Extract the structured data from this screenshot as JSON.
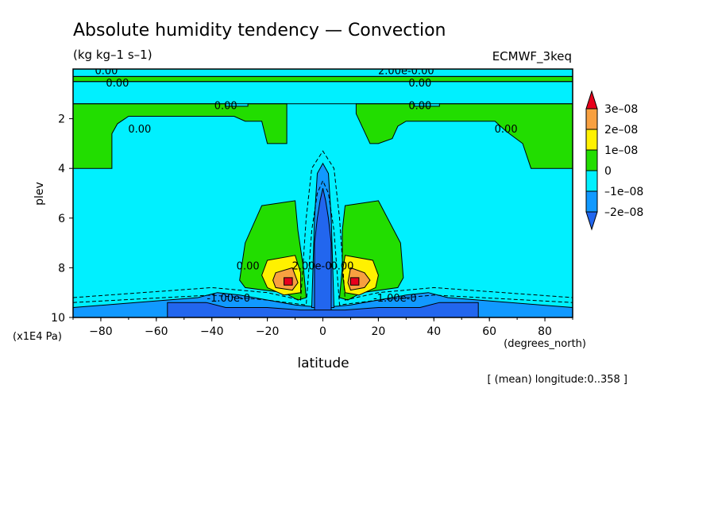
{
  "chart_data": {
    "type": "heatmap",
    "title": "Absolute humidity tendency — Convection",
    "units": "(kg kg–1 s–1)",
    "dataset": "ECMWF_3keq",
    "xlabel": "latitude",
    "xunits": "(degrees_north)",
    "ylabel": "plev",
    "yunits": "(x1E4 Pa)",
    "footnote": "[ (mean) longitude:0..358 ]",
    "xlim": [
      -90,
      90
    ],
    "ylim": [
      10,
      0
    ],
    "xticks": [
      "−80",
      "−60",
      "−40",
      "−20",
      "0",
      "20",
      "40",
      "60",
      "80"
    ],
    "xtick_values": [
      -80,
      -60,
      -40,
      -20,
      0,
      20,
      40,
      60,
      80
    ],
    "yticks": [
      "2",
      "4",
      "6",
      "8",
      "10"
    ],
    "ytick_values": [
      2,
      4,
      6,
      8,
      10
    ],
    "colorbar": {
      "labels": [
        "3e–08",
        "2e–08",
        "1e–08",
        "0",
        "–1e–08",
        "–2e–08"
      ],
      "values": [
        3e-08,
        2e-08,
        1e-08,
        0,
        -1e-08,
        -2e-08
      ],
      "colors": [
        "#e8001c",
        "#f8a040",
        "#fff100",
        "#22dd00",
        "#00f0ff",
        "#1199ff",
        "#2266ee"
      ]
    },
    "background_color": "#00f0ff",
    "regions": [
      {
        "name": "upper-green-band",
        "level": "0 to 1e-08",
        "color": "#22dd00",
        "points": [
          [
            -90,
            0.3
          ],
          [
            90,
            0.3
          ],
          [
            90,
            0.5
          ],
          [
            -90,
            0.5
          ]
        ]
      },
      {
        "name": "green-left-upper",
        "level": "0 to 1e-08",
        "color": "#22dd00",
        "points": [
          [
            -90,
            1.4
          ],
          [
            -35,
            1.4
          ],
          [
            -35,
            1.5
          ],
          [
            -27,
            1.5
          ],
          [
            -27,
            1.4
          ],
          [
            -13,
            1.4
          ],
          [
            -13,
            3.0
          ],
          [
            -20,
            3.0
          ],
          [
            -22,
            2.1
          ],
          [
            -28,
            2.1
          ],
          [
            -32,
            1.9
          ],
          [
            -70,
            1.9
          ],
          [
            -74,
            2.2
          ],
          [
            -76,
            2.6
          ],
          [
            -76,
            4.0
          ],
          [
            -90,
            4.0
          ]
        ]
      },
      {
        "name": "green-right-upper",
        "level": "0 to 1e-08",
        "color": "#22dd00",
        "points": [
          [
            12,
            1.4
          ],
          [
            33,
            1.4
          ],
          [
            33,
            1.5
          ],
          [
            42,
            1.5
          ],
          [
            42,
            1.4
          ],
          [
            90,
            1.4
          ],
          [
            90,
            4.0
          ],
          [
            75,
            4.0
          ],
          [
            72,
            3.0
          ],
          [
            66,
            2.5
          ],
          [
            62,
            2.1
          ],
          [
            30,
            2.1
          ],
          [
            27,
            2.3
          ],
          [
            25,
            2.8
          ],
          [
            20,
            3.0
          ],
          [
            17,
            3.0
          ],
          [
            12,
            1.8
          ]
        ]
      },
      {
        "name": "green-left-lower",
        "level": "0 to 1e-08",
        "color": "#22dd00",
        "points": [
          [
            -22,
            5.5
          ],
          [
            -10,
            5.3
          ],
          [
            -9,
            6.5
          ],
          [
            -7,
            8.0
          ],
          [
            -6,
            9.2
          ],
          [
            -9,
            9.3
          ],
          [
            -14,
            9.0
          ],
          [
            -28,
            8.8
          ],
          [
            -30,
            8.5
          ],
          [
            -28,
            7.0
          ]
        ]
      },
      {
        "name": "green-right-lower",
        "level": "0 to 1e-08",
        "color": "#22dd00",
        "points": [
          [
            8,
            5.5
          ],
          [
            20,
            5.3
          ],
          [
            28,
            7.0
          ],
          [
            29,
            8.4
          ],
          [
            27,
            8.8
          ],
          [
            14,
            9.0
          ],
          [
            9,
            9.3
          ],
          [
            6,
            9.2
          ],
          [
            7,
            8.0
          ],
          [
            7,
            6.5
          ]
        ]
      },
      {
        "name": "yellow-left",
        "level": "1e-08 to 2e-08",
        "color": "#fff100",
        "points": [
          [
            -20,
            7.7
          ],
          [
            -10,
            7.5
          ],
          [
            -8,
            8.2
          ],
          [
            -8,
            9.0
          ],
          [
            -14,
            9.1
          ],
          [
            -20,
            8.8
          ],
          [
            -22,
            8.3
          ]
        ]
      },
      {
        "name": "yellow-right",
        "level": "1e-08 to 2e-08",
        "color": "#fff100",
        "points": [
          [
            8,
            7.5
          ],
          [
            18,
            7.7
          ],
          [
            20,
            8.3
          ],
          [
            19,
            8.8
          ],
          [
            13,
            9.1
          ],
          [
            8,
            9.0
          ],
          [
            7,
            8.2
          ]
        ]
      },
      {
        "name": "orange-left",
        "level": "2e-08 to 3e-08",
        "color": "#f8a040",
        "points": [
          [
            -17,
            8.2
          ],
          [
            -11,
            8.0
          ],
          [
            -9,
            8.6
          ],
          [
            -11,
            8.9
          ],
          [
            -17,
            8.8
          ],
          [
            -18,
            8.5
          ]
        ]
      },
      {
        "name": "orange-right",
        "level": "2e-08 to 3e-08",
        "color": "#f8a040",
        "points": [
          [
            10,
            8.0
          ],
          [
            15,
            8.2
          ],
          [
            17,
            8.5
          ],
          [
            15,
            8.8
          ],
          [
            10,
            8.9
          ],
          [
            9,
            8.6
          ]
        ]
      },
      {
        "name": "red-left",
        "level": "above 3e-08",
        "color": "#e8001c",
        "points": [
          [
            -14,
            8.4
          ],
          [
            -11,
            8.4
          ],
          [
            -11,
            8.7
          ],
          [
            -14,
            8.7
          ]
        ]
      },
      {
        "name": "red-right",
        "level": "above 3e-08",
        "color": "#e8001c",
        "points": [
          [
            10,
            8.4
          ],
          [
            13,
            8.4
          ],
          [
            13,
            8.7
          ],
          [
            10,
            8.7
          ]
        ]
      },
      {
        "name": "blue-low-band",
        "level": "-2e-08 to -1e-08",
        "color": "#1199ff",
        "points": [
          [
            -90,
            9.6
          ],
          [
            -45,
            9.2
          ],
          [
            -38,
            9.0
          ],
          [
            -30,
            9.1
          ],
          [
            -10,
            9.5
          ],
          [
            0,
            9.6
          ],
          [
            10,
            9.5
          ],
          [
            30,
            9.1
          ],
          [
            38,
            9.0
          ],
          [
            45,
            9.2
          ],
          [
            90,
            9.6
          ],
          [
            90,
            10
          ],
          [
            -90,
            10
          ]
        ]
      },
      {
        "name": "blue-central-column",
        "level": "-2e-08 to -1e-08",
        "color": "#1199ff",
        "points": [
          [
            -4,
            9.6
          ],
          [
            -3,
            6.0
          ],
          [
            -2,
            4.2
          ],
          [
            0,
            3.8
          ],
          [
            2,
            4.2
          ],
          [
            3,
            6.0
          ],
          [
            4,
            9.6
          ]
        ]
      },
      {
        "name": "deep-blue-central-column",
        "level": "below -2e-08",
        "color": "#2266ee",
        "points": [
          [
            -3,
            9.8
          ],
          [
            -3,
            7.0
          ],
          [
            -2,
            6.0
          ],
          [
            -1,
            5.3
          ],
          [
            0,
            4.8
          ],
          [
            1,
            5.3
          ],
          [
            2,
            6.0
          ],
          [
            3,
            7.0
          ],
          [
            3,
            9.8
          ]
        ]
      },
      {
        "name": "deep-blue-base",
        "level": "below -2e-08",
        "color": "#2266ee",
        "points": [
          [
            -56,
            9.4
          ],
          [
            -42,
            9.4
          ],
          [
            -35,
            9.6
          ],
          [
            -20,
            9.6
          ],
          [
            -8,
            9.7
          ],
          [
            0,
            9.7
          ],
          [
            8,
            9.7
          ],
          [
            20,
            9.6
          ],
          [
            35,
            9.6
          ],
          [
            42,
            9.4
          ],
          [
            56,
            9.4
          ],
          [
            56,
            10
          ],
          [
            -56,
            10
          ]
        ]
      }
    ],
    "contours": [
      {
        "name": "zero-line-top",
        "style": "solid",
        "points": [
          [
            -90,
            0.3
          ],
          [
            90,
            0.3
          ]
        ]
      },
      {
        "name": "zero-line-upper",
        "style": "solid",
        "points": [
          [
            -90,
            0.5
          ],
          [
            90,
            0.5
          ]
        ]
      },
      {
        "name": "zero-line-mid",
        "style": "solid",
        "points": [
          [
            -90,
            1.4
          ],
          [
            90,
            1.4
          ]
        ]
      },
      {
        "name": "dashed-outer",
        "style": "dashed",
        "points": [
          [
            -90,
            9.2
          ],
          [
            -40,
            8.8
          ],
          [
            -20,
            9.0
          ],
          [
            -8,
            9.3
          ],
          [
            -6,
            6.0
          ],
          [
            -4,
            4.0
          ],
          [
            0,
            3.3
          ],
          [
            4,
            4.0
          ],
          [
            6,
            6.0
          ],
          [
            8,
            9.3
          ],
          [
            20,
            9.0
          ],
          [
            40,
            8.8
          ],
          [
            90,
            9.2
          ]
        ]
      },
      {
        "name": "dashed-inner",
        "style": "dashed",
        "points": [
          [
            -90,
            9.4
          ],
          [
            -40,
            9.1
          ],
          [
            -20,
            9.3
          ],
          [
            -6,
            9.5
          ],
          [
            -4,
            6.5
          ],
          [
            -2,
            5.0
          ],
          [
            0,
            4.5
          ],
          [
            2,
            5.0
          ],
          [
            4,
            6.5
          ],
          [
            6,
            9.5
          ],
          [
            20,
            9.3
          ],
          [
            40,
            9.1
          ],
          [
            90,
            9.4
          ]
        ]
      }
    ],
    "contour_labels": [
      {
        "text": "0.00",
        "x": -78,
        "y": 0.05
      },
      {
        "text": "0.00",
        "x": -74,
        "y": 0.55
      },
      {
        "text": "0.00",
        "x": -35,
        "y": 1.45
      },
      {
        "text": "0.00",
        "x": -66,
        "y": 2.4
      },
      {
        "text": "2.00e-0.00",
        "x": 30,
        "y": 0.05
      },
      {
        "text": "0.00",
        "x": 35,
        "y": 0.55
      },
      {
        "text": "0.00",
        "x": 35,
        "y": 1.45
      },
      {
        "text": "0.00",
        "x": 66,
        "y": 2.4
      },
      {
        "text": "0.00",
        "x": -27,
        "y": 7.9
      },
      {
        "text": "0.00",
        "x": 7,
        "y": 7.9
      },
      {
        "text": "2.00e-0",
        "x": -4,
        "y": 7.9
      },
      {
        "text": "-1.00e-0",
        "x": -34,
        "y": 9.2
      },
      {
        "text": "-1.00e-0",
        "x": 26,
        "y": 9.2
      }
    ]
  }
}
